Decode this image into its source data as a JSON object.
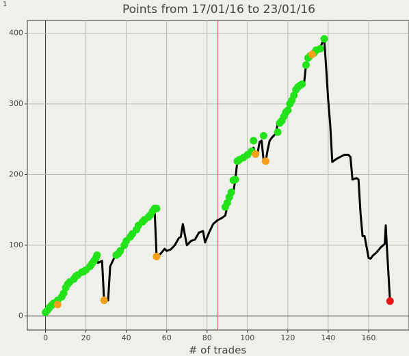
{
  "chart_data": {
    "type": "line",
    "annotation": "1",
    "title": "Points from 17/01/16 to 23/01/16",
    "x_label": "# of trades",
    "xlim": [
      -9,
      180
    ],
    "ylim": [
      -20,
      418
    ],
    "xticks": [
      0,
      20,
      40,
      60,
      80,
      100,
      120,
      140,
      160
    ],
    "yticks": [
      0,
      100,
      200,
      300,
      400
    ],
    "grid": true,
    "vline": {
      "x": 85.3,
      "color": "#d9534f"
    },
    "series": [
      {
        "color": "#000000",
        "kind": "line",
        "x": [
          0,
          2,
          4,
          6,
          8,
          10,
          12,
          14,
          16,
          18,
          20,
          22,
          24,
          25,
          26,
          28,
          29,
          31,
          32,
          34,
          36,
          38,
          40,
          42,
          44,
          46,
          48,
          50,
          52,
          53,
          54,
          55,
          57,
          59,
          60,
          62,
          64,
          66,
          67,
          68,
          70,
          72,
          74,
          76,
          78,
          79,
          81,
          83,
          85,
          87,
          89,
          90,
          92,
          93,
          94,
          95,
          97,
          99,
          101,
          103,
          104,
          105,
          106,
          107,
          108,
          109,
          110,
          111,
          112,
          114,
          115,
          117,
          119,
          121,
          122,
          124,
          126,
          128,
          129,
          130,
          132,
          134,
          136,
          138,
          139,
          140,
          141,
          142,
          144,
          146,
          148,
          150,
          151,
          152,
          154,
          155,
          156,
          157,
          158,
          160,
          161,
          162,
          164,
          166,
          168,
          168.5,
          169,
          170.6
        ],
        "values": [
          5,
          10,
          15,
          20,
          30,
          42,
          48,
          53,
          60,
          63,
          65,
          72,
          78,
          86,
          75,
          78,
          22,
          22,
          70,
          82,
          88,
          92,
          105,
          112,
          118,
          128,
          135,
          140,
          148,
          152,
          152,
          84,
          88,
          95,
          92,
          94,
          100,
          110,
          112,
          130,
          100,
          106,
          108,
          118,
          120,
          104,
          118,
          130,
          135,
          138,
          142,
          155,
          168,
          175,
          193,
          219,
          222,
          227,
          232,
          238,
          228,
          230,
          246,
          248,
          220,
          218,
          235,
          248,
          252,
          258,
          272,
          278,
          288,
          298,
          305,
          315,
          325,
          328,
          355,
          365,
          370,
          375,
          380,
          392,
          350,
          305,
          270,
          218,
          222,
          225,
          228,
          228,
          225,
          193,
          195,
          193,
          145,
          113,
          113,
          82,
          81,
          85,
          90,
          97,
          102,
          128,
          100,
          21
        ]
      },
      {
        "color": "#22e31a",
        "kind": "points",
        "x": [
          0,
          1,
          2,
          3,
          4,
          6,
          8,
          9,
          10,
          11,
          12,
          14,
          15,
          16,
          18,
          19,
          20,
          22,
          23,
          24,
          25,
          25.5,
          35,
          36,
          37,
          39,
          40,
          42,
          43,
          45,
          46,
          48,
          49,
          51,
          52,
          53,
          54,
          55,
          89,
          90,
          91,
          92,
          93,
          94,
          95,
          96,
          98,
          100,
          102,
          103,
          108,
          115,
          116,
          117,
          118,
          119,
          120,
          121,
          122,
          123,
          124,
          125,
          126,
          127,
          129,
          130,
          131,
          133,
          134,
          136,
          138
        ],
        "values": [
          5,
          8,
          12,
          15,
          18,
          22,
          27,
          32,
          40,
          45,
          48,
          52,
          56,
          58,
          62,
          63,
          65,
          70,
          74,
          78,
          82,
          86,
          86,
          88,
          92,
          100,
          106,
          112,
          116,
          122,
          128,
          133,
          136,
          140,
          143,
          148,
          152,
          152,
          154,
          160,
          168,
          175,
          192,
          193,
          219,
          221,
          224,
          228,
          233,
          248,
          255,
          260,
          273,
          276,
          282,
          288,
          291,
          300,
          305,
          312,
          320,
          324,
          326,
          328,
          355,
          365,
          368,
          372,
          376,
          378,
          392
        ]
      },
      {
        "color": "#f5a01a",
        "kind": "points",
        "x": [
          6,
          29,
          55,
          104,
          109,
          132
        ],
        "values": [
          16,
          22,
          84,
          229,
          219,
          370
        ]
      },
      {
        "color": "#e8141a",
        "kind": "points",
        "x": [
          170.6
        ],
        "values": [
          21
        ]
      }
    ]
  }
}
